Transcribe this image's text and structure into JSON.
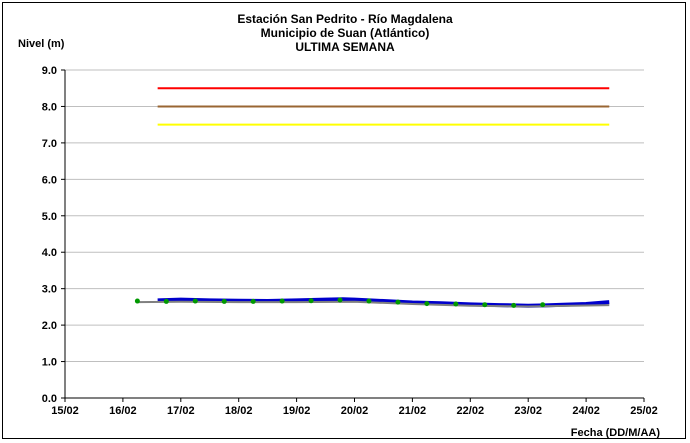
{
  "chart_data": {
    "type": "line",
    "title_lines": [
      "Estación San Pedrito - Río Magdalena",
      "Municipio de Suan (Atlántico)",
      "ULTIMA SEMANA"
    ],
    "ylabel": "Nivel (m)",
    "xlabel": "Fecha (DD/M/AA)",
    "ylim": [
      0,
      9
    ],
    "y_ticks": [
      "0.0",
      "1.0",
      "2.0",
      "3.0",
      "4.0",
      "5.0",
      "6.0",
      "7.0",
      "8.0",
      "9.0"
    ],
    "x_ticks": [
      "15/02",
      "16/02",
      "17/02",
      "18/02",
      "19/02",
      "20/02",
      "21/02",
      "22/02",
      "23/02",
      "24/02",
      "25/02"
    ],
    "xlim_days": [
      15,
      25
    ],
    "grid": "horizontal",
    "thresholds": [
      {
        "value": 8.5,
        "color": "#ff0000",
        "x_start": 16.6,
        "x_end": 24.4
      },
      {
        "value": 8.0,
        "color": "#996633",
        "x_start": 16.6,
        "x_end": 24.4
      },
      {
        "value": 7.5,
        "color": "#ffff00",
        "x_start": 16.6,
        "x_end": 24.4
      }
    ],
    "series": [
      {
        "color": "#0000cc",
        "x": [
          16.6,
          17.0,
          17.5,
          18.0,
          18.5,
          19.0,
          19.5,
          19.8,
          20.0,
          20.5,
          21.0,
          21.5,
          22.0,
          22.5,
          23.0,
          23.3,
          23.6,
          24.0,
          24.4
        ],
        "y": [
          2.68,
          2.7,
          2.68,
          2.67,
          2.66,
          2.68,
          2.7,
          2.71,
          2.7,
          2.66,
          2.62,
          2.6,
          2.57,
          2.55,
          2.53,
          2.54,
          2.56,
          2.58,
          2.63
        ]
      },
      {
        "color": "#808080",
        "x": [
          16.25,
          17.0,
          18.0,
          19.0,
          20.0,
          21.0,
          22.0,
          23.0,
          24.4
        ],
        "y": [
          2.63,
          2.64,
          2.63,
          2.63,
          2.64,
          2.58,
          2.53,
          2.51,
          2.55
        ]
      },
      {
        "color": "#009900",
        "x": [
          16.25,
          16.75,
          17.25,
          17.75,
          18.25,
          18.75,
          19.25,
          19.75,
          20.25,
          20.75,
          21.25,
          21.75,
          22.25,
          22.75,
          23.25
        ],
        "y": [
          2.66,
          2.65,
          2.66,
          2.65,
          2.65,
          2.66,
          2.67,
          2.69,
          2.66,
          2.63,
          2.59,
          2.58,
          2.56,
          2.54,
          2.56
        ]
      }
    ]
  }
}
